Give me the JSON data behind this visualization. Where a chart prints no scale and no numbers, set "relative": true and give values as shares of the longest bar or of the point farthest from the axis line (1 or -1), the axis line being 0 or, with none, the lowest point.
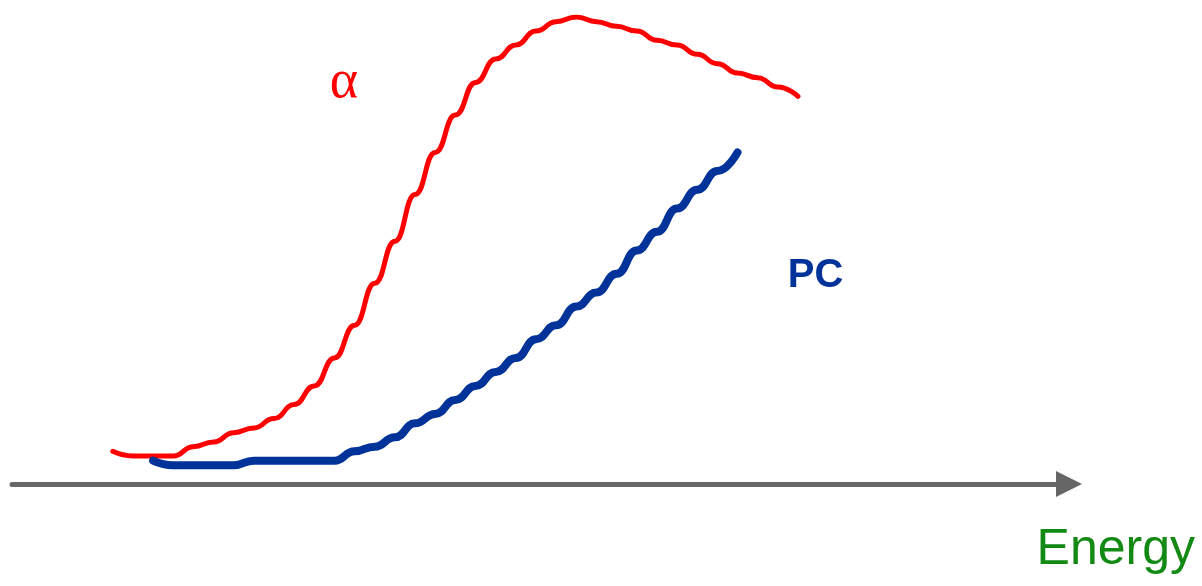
{
  "chart_data": {
    "type": "line",
    "relative": true,
    "xlabel": "Energy",
    "legend": false,
    "grid": false,
    "marker": "none",
    "line_style": "solid",
    "categories": [
      null,
      null,
      null,
      null,
      null,
      null,
      null,
      null,
      null,
      null,
      null,
      null,
      null,
      null,
      null,
      null,
      null,
      null,
      null,
      null,
      null,
      null,
      null,
      null,
      null,
      null,
      null,
      null,
      null,
      null,
      null,
      null,
      null,
      null,
      null,
      null,
      null,
      null,
      null,
      null,
      null,
      null,
      null,
      null,
      null,
      null,
      null,
      null,
      null,
      null,
      null,
      null,
      null
    ],
    "series": [
      {
        "name": "α",
        "color": "#ff0000",
        "values": [
          null,
          null,
          null,
          null,
          null,
          0.07,
          0.06,
          0.06,
          0.06,
          0.08,
          0.09,
          0.11,
          0.12,
          0.14,
          0.17,
          0.21,
          0.27,
          0.34,
          0.43,
          0.52,
          0.62,
          0.71,
          0.79,
          0.86,
          0.91,
          0.94,
          0.97,
          0.99,
          1,
          0.99,
          0.98,
          0.97,
          0.95,
          0.94,
          0.92,
          0.9,
          0.88,
          0.87,
          0.85,
          0.83,
          null,
          null,
          null,
          null,
          null,
          null,
          null,
          null,
          null,
          null,
          null,
          null,
          null
        ]
      },
      {
        "name": "PC",
        "color": "#003399",
        "values": [
          null,
          null,
          null,
          null,
          null,
          null,
          null,
          0.05,
          0.04,
          0.04,
          0.04,
          0.04,
          0.05,
          0.05,
          0.05,
          0.05,
          0.05,
          0.07,
          0.08,
          0.1,
          0.13,
          0.15,
          0.18,
          0.21,
          0.24,
          0.27,
          0.31,
          0.34,
          0.38,
          0.41,
          0.45,
          0.5,
          0.54,
          0.59,
          0.63,
          0.67,
          0.71,
          null,
          null,
          null,
          null,
          null,
          null,
          null,
          null,
          null,
          null,
          null,
          null,
          null,
          null,
          null,
          null
        ]
      }
    ]
  }
}
